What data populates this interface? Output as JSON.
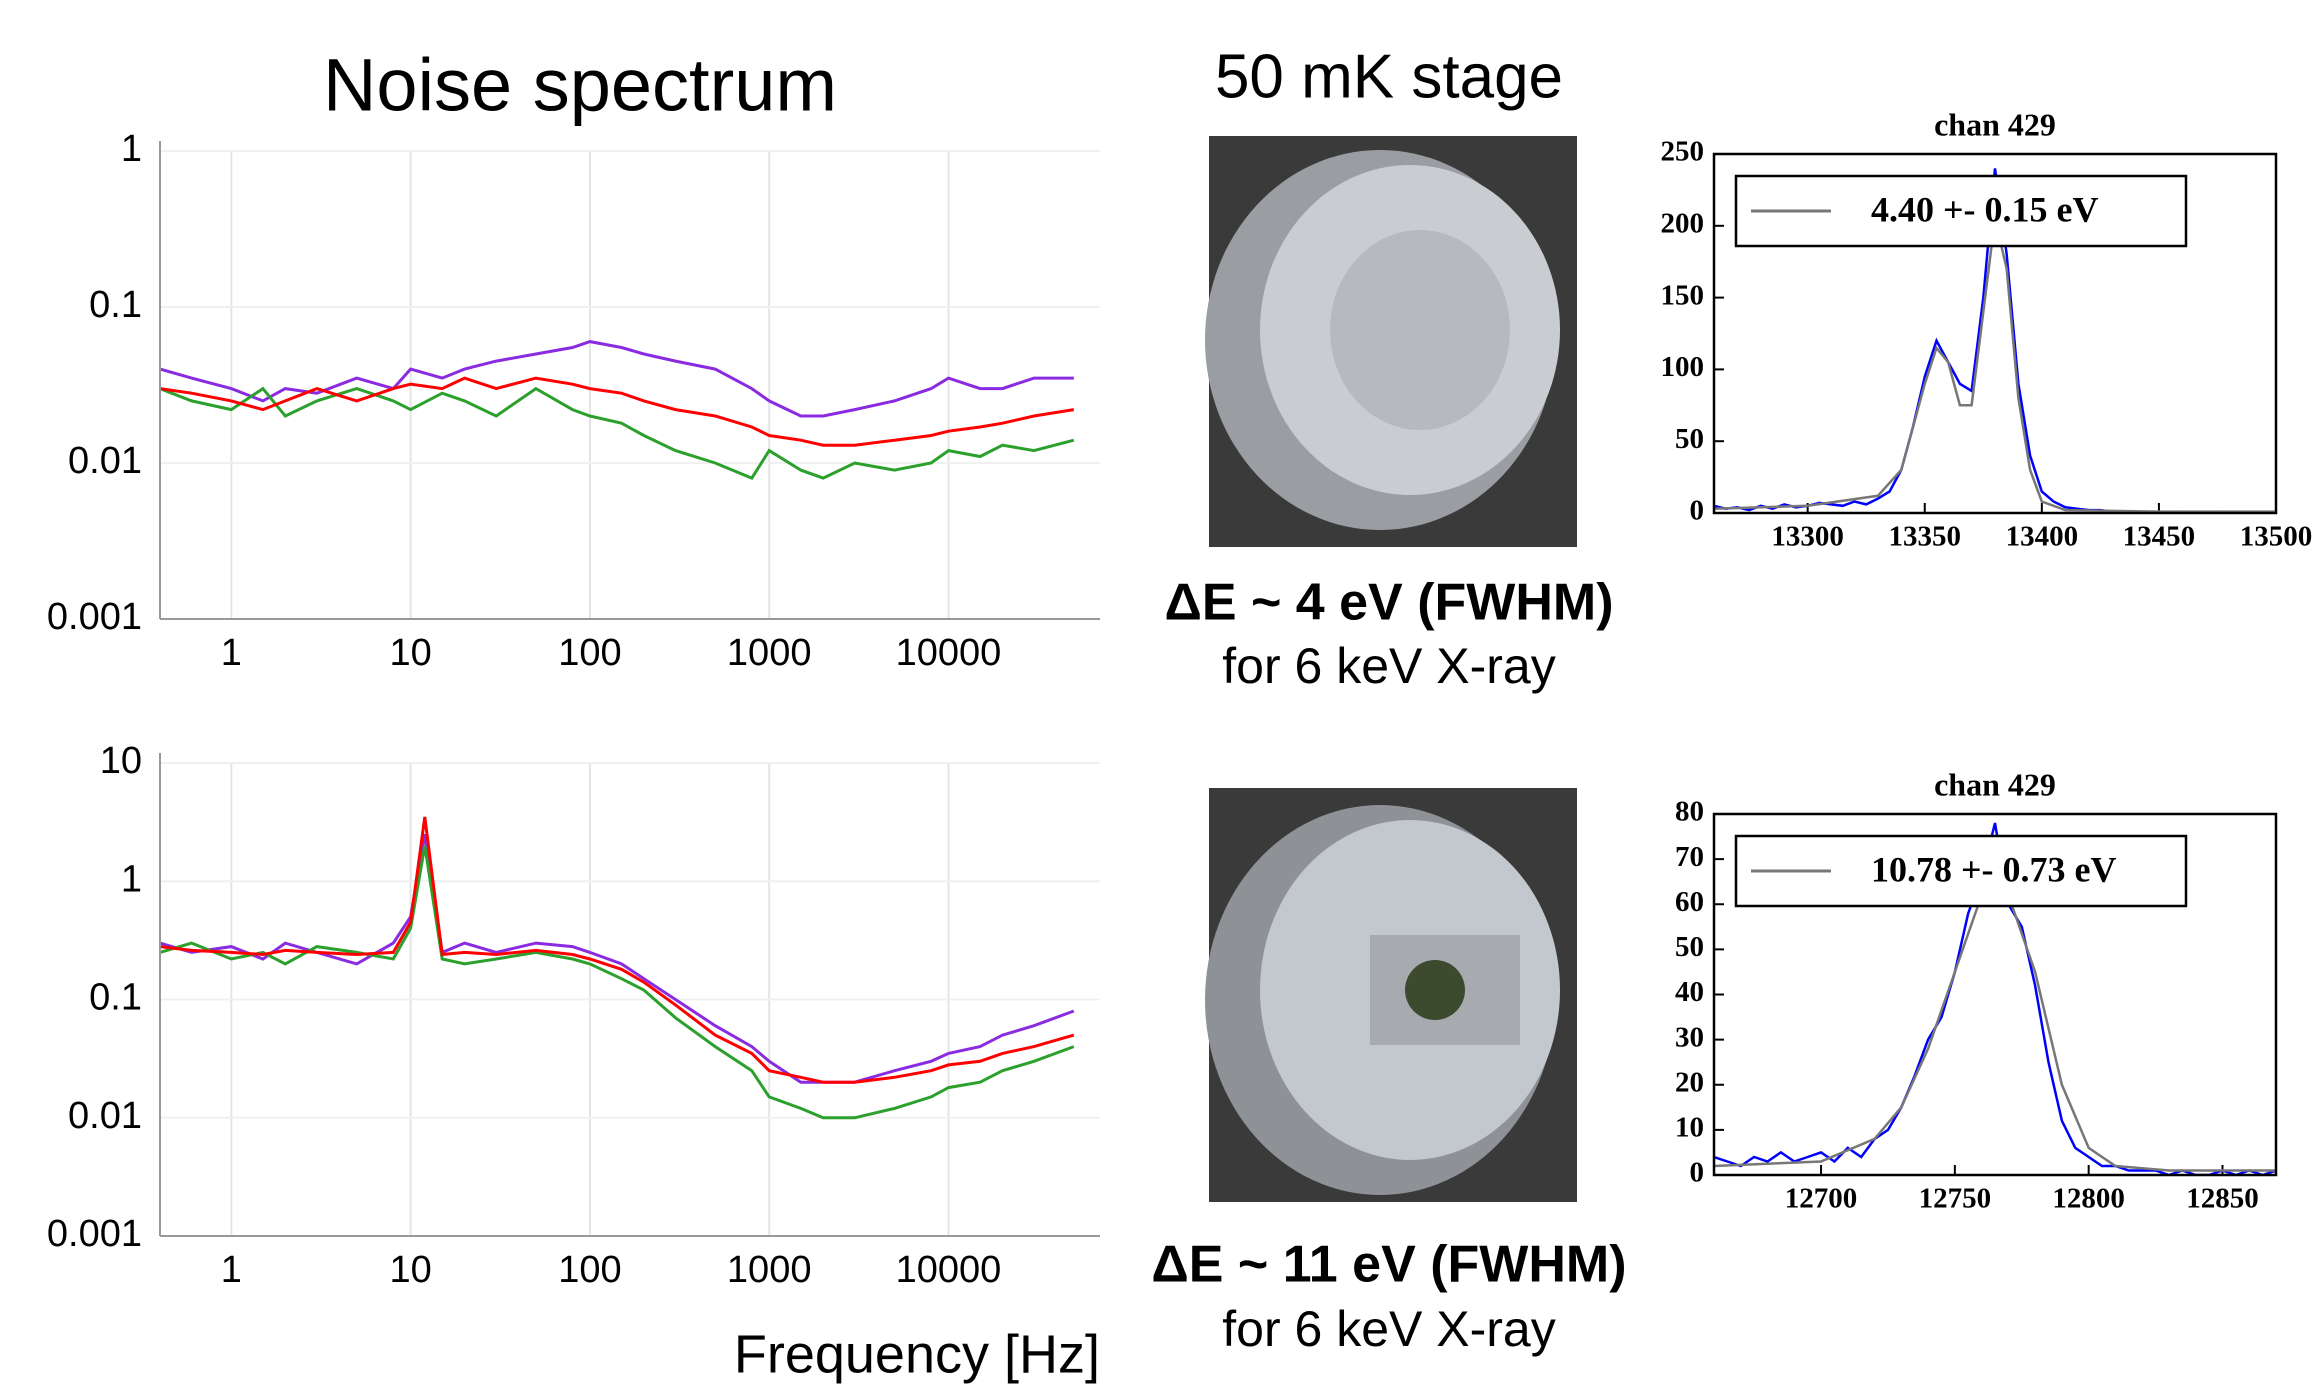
{
  "stage_title": "50 mK stage",
  "results": [
    {
      "resolution": "ΔE ~ 4 eV (FWHM)",
      "condition": "for 6 keV X-ray"
    },
    {
      "resolution": "ΔE ~ 11 eV (FWHM)",
      "condition": "for 6 keV X-ray"
    }
  ],
  "chart_data": [
    {
      "type": "line",
      "title": "Noise spectrum",
      "xscale": "log",
      "yscale": "log",
      "grid": true,
      "x": [
        0.4,
        0.6,
        1,
        1.5,
        2,
        3,
        5,
        8,
        10,
        15,
        20,
        30,
        50,
        80,
        100,
        150,
        200,
        300,
        500,
        800,
        1000,
        1500,
        2000,
        3000,
        5000,
        8000,
        10000,
        15000,
        20000,
        30000,
        50000
      ],
      "series": [
        {
          "color": "#8a2be2",
          "values": [
            0.04,
            0.035,
            0.03,
            0.025,
            0.03,
            0.028,
            0.035,
            0.03,
            0.04,
            0.035,
            0.04,
            0.045,
            0.05,
            0.055,
            0.06,
            0.055,
            0.05,
            0.045,
            0.04,
            0.03,
            0.025,
            0.02,
            0.02,
            0.022,
            0.025,
            0.03,
            0.035,
            0.03,
            0.03,
            0.035,
            0.035
          ]
        },
        {
          "color": "#2ca02c",
          "values": [
            0.03,
            0.025,
            0.022,
            0.03,
            0.02,
            0.025,
            0.03,
            0.025,
            0.022,
            0.028,
            0.025,
            0.02,
            0.03,
            0.022,
            0.02,
            0.018,
            0.015,
            0.012,
            0.01,
            0.008,
            0.012,
            0.009,
            0.008,
            0.01,
            0.009,
            0.01,
            0.012,
            0.011,
            0.013,
            0.012,
            0.014
          ]
        },
        {
          "color": "#ff0000",
          "values": [
            0.03,
            0.028,
            0.025,
            0.022,
            0.025,
            0.03,
            0.025,
            0.03,
            0.032,
            0.03,
            0.035,
            0.03,
            0.035,
            0.032,
            0.03,
            0.028,
            0.025,
            0.022,
            0.02,
            0.017,
            0.015,
            0.014,
            0.013,
            0.013,
            0.014,
            0.015,
            0.016,
            0.017,
            0.018,
            0.02,
            0.022
          ]
        }
      ],
      "xlim": [
        0.4,
        70000
      ],
      "ylim": [
        0.001,
        1
      ],
      "xticks": [
        1,
        10,
        100,
        1000,
        10000
      ],
      "yticks": [
        0.001,
        0.01,
        0.1,
        1
      ]
    },
    {
      "type": "line",
      "x_label": "Frequency [Hz]",
      "xscale": "log",
      "yscale": "log",
      "grid": true,
      "x": [
        0.4,
        0.6,
        1,
        1.5,
        2,
        3,
        5,
        8,
        10,
        12,
        15,
        20,
        30,
        50,
        80,
        100,
        150,
        200,
        300,
        500,
        800,
        1000,
        1500,
        2000,
        3000,
        5000,
        8000,
        10000,
        15000,
        20000,
        30000,
        50000
      ],
      "series": [
        {
          "color": "#8a2be2",
          "values": [
            0.3,
            0.25,
            0.28,
            0.22,
            0.3,
            0.25,
            0.2,
            0.3,
            0.5,
            2.5,
            0.25,
            0.3,
            0.25,
            0.3,
            0.28,
            0.25,
            0.2,
            0.15,
            0.1,
            0.06,
            0.04,
            0.03,
            0.02,
            0.02,
            0.02,
            0.025,
            0.03,
            0.035,
            0.04,
            0.05,
            0.06,
            0.08
          ]
        },
        {
          "color": "#2ca02c",
          "values": [
            0.25,
            0.3,
            0.22,
            0.25,
            0.2,
            0.28,
            0.25,
            0.22,
            0.4,
            2,
            0.22,
            0.2,
            0.22,
            0.25,
            0.22,
            0.2,
            0.15,
            0.12,
            0.07,
            0.04,
            0.025,
            0.015,
            0.012,
            0.01,
            0.01,
            0.012,
            0.015,
            0.018,
            0.02,
            0.025,
            0.03,
            0.04
          ]
        },
        {
          "color": "#ff0000",
          "values": [
            0.28,
            0.26,
            0.25,
            0.24,
            0.26,
            0.25,
            0.24,
            0.25,
            0.45,
            3.5,
            0.24,
            0.25,
            0.24,
            0.26,
            0.24,
            0.22,
            0.18,
            0.14,
            0.09,
            0.05,
            0.035,
            0.025,
            0.022,
            0.02,
            0.02,
            0.022,
            0.025,
            0.028,
            0.03,
            0.035,
            0.04,
            0.05
          ]
        }
      ],
      "xlim": [
        0.4,
        70000
      ],
      "ylim": [
        0.001,
        10
      ],
      "xticks": [
        1,
        10,
        100,
        1000,
        10000
      ],
      "yticks": [
        0.001,
        0.01,
        0.1,
        1,
        10
      ]
    },
    {
      "type": "line",
      "title": "chan 429",
      "legend": "upper left",
      "series": [
        {
          "color": "#0000ff",
          "x": [
            13260,
            13265,
            13270,
            13275,
            13280,
            13285,
            13290,
            13295,
            13300,
            13305,
            13310,
            13315,
            13320,
            13325,
            13330,
            13335,
            13340,
            13345,
            13350,
            13355,
            13360,
            13365,
            13370,
            13375,
            13380,
            13385,
            13390,
            13395,
            13400,
            13405,
            13410,
            13415,
            13420,
            13425,
            13430,
            13435,
            13440,
            13445,
            13450,
            13455,
            13460,
            13465,
            13470,
            13475,
            13480,
            13485,
            13490,
            13495,
            13500
          ],
          "values": [
            5,
            3,
            4,
            2,
            5,
            3,
            6,
            4,
            5,
            7,
            6,
            5,
            8,
            6,
            10,
            15,
            30,
            60,
            95,
            120,
            105,
            90,
            85,
            150,
            240,
            180,
            90,
            40,
            15,
            8,
            4,
            3,
            2,
            2,
            1,
            1,
            1,
            0,
            1,
            0,
            1,
            0,
            0,
            1,
            0,
            0,
            0,
            0,
            0
          ]
        },
        {
          "name": "4.40 +- 0.15 eV",
          "color": "#777777",
          "x": [
            13260,
            13300,
            13330,
            13340,
            13350,
            13355,
            13360,
            13365,
            13370,
            13375,
            13380,
            13385,
            13390,
            13395,
            13400,
            13410,
            13450,
            13500
          ],
          "values": [
            3,
            5,
            12,
            30,
            90,
            115,
            105,
            75,
            75,
            140,
            205,
            170,
            80,
            30,
            8,
            2,
            1,
            1
          ]
        }
      ],
      "xlim": [
        13260,
        13500
      ],
      "ylim": [
        0,
        250
      ],
      "xticks": [
        13300,
        13350,
        13400,
        13450,
        13500
      ],
      "yticks": [
        0,
        50,
        100,
        150,
        200,
        250
      ]
    },
    {
      "type": "line",
      "title": "chan 429",
      "legend": "upper left",
      "series": [
        {
          "color": "#0000ff",
          "x": [
            12660,
            12665,
            12670,
            12675,
            12680,
            12685,
            12690,
            12695,
            12700,
            12705,
            12710,
            12715,
            12720,
            12725,
            12730,
            12735,
            12740,
            12745,
            12750,
            12755,
            12760,
            12765,
            12770,
            12775,
            12780,
            12785,
            12790,
            12795,
            12800,
            12805,
            12810,
            12815,
            12820,
            12825,
            12830,
            12835,
            12840,
            12845,
            12850,
            12855,
            12860,
            12865,
            12870
          ],
          "values": [
            4,
            3,
            2,
            4,
            3,
            5,
            3,
            4,
            5,
            3,
            6,
            4,
            8,
            10,
            15,
            22,
            30,
            35,
            45,
            58,
            66,
            78,
            60,
            55,
            42,
            25,
            12,
            6,
            4,
            2,
            2,
            1,
            1,
            1,
            0,
            1,
            0,
            0,
            1,
            0,
            1,
            0,
            1
          ]
        },
        {
          "name": "10.78 +- 0.73 eV",
          "color": "#777777",
          "x": [
            12660,
            12700,
            12720,
            12730,
            12740,
            12750,
            12760,
            12765,
            12770,
            12780,
            12790,
            12800,
            12810,
            12830,
            12870
          ],
          "values": [
            2,
            3,
            8,
            15,
            28,
            45,
            62,
            65,
            62,
            45,
            20,
            6,
            2,
            1,
            1
          ]
        }
      ],
      "xlim": [
        12660,
        12870
      ],
      "ylim": [
        0,
        80
      ],
      "xticks": [
        12700,
        12750,
        12800,
        12850
      ],
      "yticks": [
        0,
        10,
        20,
        30,
        40,
        50,
        60,
        70,
        80
      ]
    }
  ]
}
